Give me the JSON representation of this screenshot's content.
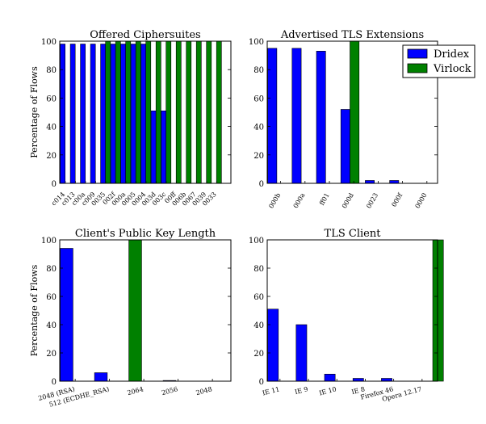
{
  "colors": {
    "dridex": "#0000ff",
    "virlock": "#008000",
    "axis": "#000000",
    "background": "#ffffff"
  },
  "legend": {
    "placement": "top-right of TLS extensions panel",
    "entries": [
      {
        "label": "Dridex",
        "color": "#0000ff"
      },
      {
        "label": "Virlock",
        "color": "#008000"
      }
    ]
  },
  "chart_data": [
    {
      "type": "bar",
      "title": "Offered Ciphersuites",
      "xlabel": "",
      "ylabel": "Percentage of Flows",
      "ylim": [
        0,
        100
      ],
      "yticks": [
        0,
        20,
        40,
        60,
        80,
        100
      ],
      "categories": [
        "c014",
        "c013",
        "c00a",
        "c009",
        "0035",
        "002f",
        "000a",
        "0005",
        "0004",
        "003d",
        "003c",
        "00ff",
        "006b",
        "0067",
        "0039",
        "0033"
      ],
      "series": [
        {
          "name": "Dridex",
          "values": [
            98,
            98,
            98,
            98,
            98,
            98,
            98,
            98,
            98,
            51,
            51,
            0,
            0,
            0,
            0,
            0
          ]
        },
        {
          "name": "Virlock",
          "values": [
            0,
            0,
            0,
            0,
            100,
            100,
            100,
            100,
            100,
            100,
            100,
            100,
            100,
            100,
            100,
            100
          ]
        }
      ]
    },
    {
      "type": "bar",
      "title": "Advertised TLS Extensions",
      "xlabel": "",
      "ylabel": "",
      "ylim": [
        0,
        100
      ],
      "yticks": [
        0,
        20,
        40,
        60,
        80,
        100
      ],
      "categories": [
        "000b",
        "000a",
        "ff01",
        "000d",
        "0023",
        "000f",
        "0000"
      ],
      "series": [
        {
          "name": "Dridex",
          "values": [
            95,
            95,
            93,
            52,
            2,
            2,
            0
          ]
        },
        {
          "name": "Virlock",
          "values": [
            0,
            0,
            0,
            100,
            0,
            0,
            0
          ]
        }
      ]
    },
    {
      "type": "bar",
      "title": "Client's Public Key Length",
      "xlabel": "",
      "ylabel": "Percentage of Flows",
      "ylim": [
        0,
        100
      ],
      "yticks": [
        0,
        20,
        40,
        60,
        80,
        100
      ],
      "categories": [
        "2048 (RSA)",
        "512 (ECDHE_RSA)",
        "2064",
        "2056",
        "2048"
      ],
      "series": [
        {
          "name": "Dridex",
          "values": [
            94,
            6,
            0,
            0.5,
            0
          ]
        },
        {
          "name": "Virlock",
          "values": [
            0,
            0,
            100,
            0,
            0
          ]
        }
      ]
    },
    {
      "type": "bar",
      "title": "TLS Client",
      "xlabel": "",
      "ylabel": "",
      "ylim": [
        0,
        100
      ],
      "yticks": [
        0,
        20,
        40,
        60,
        80,
        100
      ],
      "categories": [
        "IE 11",
        "IE 9",
        "IE 10",
        "IE 8",
        "Firefox 46",
        "Opera 12.17"
      ],
      "series": [
        {
          "name": "Dridex",
          "values": [
            51,
            40,
            5,
            2,
            2,
            0
          ]
        },
        {
          "name": "Virlock",
          "values": [
            0,
            0,
            0,
            0,
            0,
            100
          ]
        }
      ]
    }
  ]
}
